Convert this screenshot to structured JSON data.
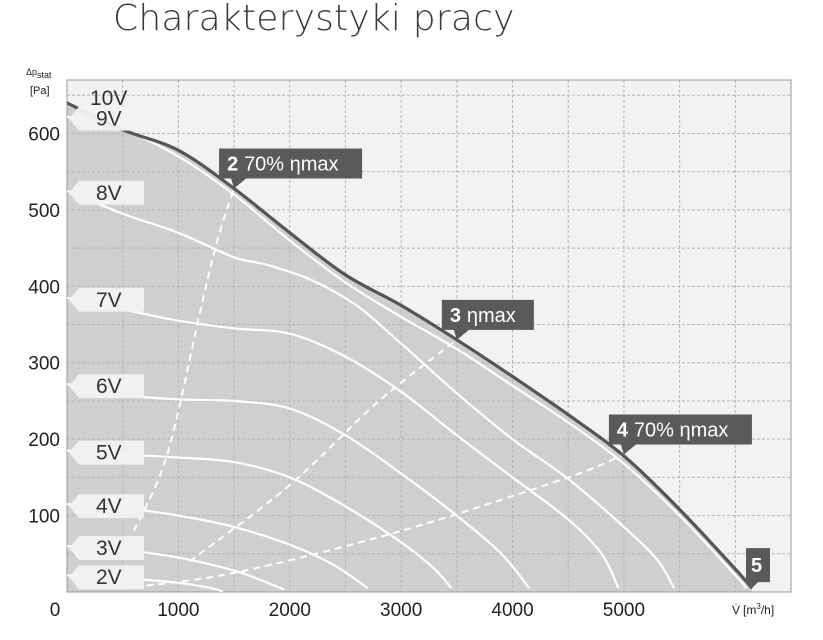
{
  "title": "Charakterystyki pracy",
  "chart_data": {
    "type": "line",
    "title": "Charakterystyki pracy",
    "ylabel": "Δp stat [Pa]",
    "ylabel_parts": {
      "symbol": "Δp",
      "sub": "stat",
      "unit": "[Pa]"
    },
    "xlabel": "V̇ [m³/h]",
    "xlabel_parts": {
      "symbol": "V̇",
      "unit_pre": "[m",
      "unit_sup": "3",
      "unit_post": "/h]"
    },
    "xlim": [
      0,
      6500
    ],
    "ylim": [
      0,
      670
    ],
    "x_ticks": [
      "0",
      "1000",
      "2000",
      "3000",
      "4000",
      "5000"
    ],
    "y_ticks": [
      "100",
      "200",
      "300",
      "400",
      "500",
      "600"
    ],
    "grid": true,
    "envelope": {
      "name": "10V",
      "points": [
        [
          0,
          640
        ],
        [
          500,
          605
        ],
        [
          1000,
          578
        ],
        [
          1500,
          528
        ],
        [
          2000,
          470
        ],
        [
          2500,
          415
        ],
        [
          3000,
          375
        ],
        [
          3500,
          330
        ],
        [
          4000,
          282
        ],
        [
          4500,
          232
        ],
        [
          5000,
          178
        ],
        [
          5500,
          108
        ],
        [
          6000,
          30
        ],
        [
          6150,
          5
        ]
      ]
    },
    "series": [
      {
        "name": "9V",
        "label": "9V",
        "values": [
          [
            0,
            622
          ],
          [
            500,
            605
          ],
          [
            1000,
            570
          ],
          [
            1500,
            520
          ],
          [
            2000,
            460
          ],
          [
            2500,
            405
          ],
          [
            3000,
            360
          ],
          [
            3500,
            318
          ],
          [
            4000,
            270
          ],
          [
            4500,
            222
          ],
          [
            5000,
            168
          ],
          [
            5500,
            100
          ],
          [
            6000,
            22
          ],
          [
            6100,
            5
          ]
        ]
      },
      {
        "name": "8V",
        "label": "8V",
        "values": [
          [
            0,
            525
          ],
          [
            500,
            495
          ],
          [
            1000,
            470
          ],
          [
            1500,
            438
          ],
          [
            1800,
            428
          ],
          [
            2200,
            408
          ],
          [
            2600,
            375
          ],
          [
            3000,
            325
          ],
          [
            3500,
            260
          ],
          [
            4000,
            200
          ],
          [
            4500,
            148
          ],
          [
            5000,
            85
          ],
          [
            5300,
            42
          ],
          [
            5450,
            5
          ]
        ]
      },
      {
        "name": "7V",
        "label": "7V",
        "values": [
          [
            0,
            385
          ],
          [
            500,
            370
          ],
          [
            1000,
            355
          ],
          [
            1500,
            345
          ],
          [
            2000,
            338
          ],
          [
            2500,
            308
          ],
          [
            3000,
            262
          ],
          [
            3500,
            205
          ],
          [
            4000,
            150
          ],
          [
            4500,
            95
          ],
          [
            4800,
            50
          ],
          [
            4950,
            5
          ]
        ]
      },
      {
        "name": "6V",
        "label": "6V",
        "values": [
          [
            0,
            272
          ],
          [
            500,
            258
          ],
          [
            1000,
            252
          ],
          [
            1500,
            250
          ],
          [
            2000,
            240
          ],
          [
            2500,
            205
          ],
          [
            3000,
            155
          ],
          [
            3500,
            100
          ],
          [
            3900,
            50
          ],
          [
            4150,
            5
          ]
        ]
      },
      {
        "name": "5V",
        "label": "5V",
        "values": [
          [
            0,
            185
          ],
          [
            500,
            180
          ],
          [
            1000,
            176
          ],
          [
            1500,
            170
          ],
          [
            2000,
            150
          ],
          [
            2500,
            112
          ],
          [
            3000,
            65
          ],
          [
            3300,
            30
          ],
          [
            3450,
            5
          ]
        ]
      },
      {
        "name": "4V",
        "label": "4V",
        "values": [
          [
            0,
            115
          ],
          [
            500,
            110
          ],
          [
            1000,
            100
          ],
          [
            1500,
            85
          ],
          [
            2000,
            62
          ],
          [
            2400,
            35
          ],
          [
            2700,
            5
          ]
        ]
      },
      {
        "name": "3V",
        "label": "3V",
        "values": [
          [
            0,
            60
          ],
          [
            500,
            55
          ],
          [
            1000,
            45
          ],
          [
            1500,
            28
          ],
          [
            1800,
            12
          ],
          [
            1950,
            3
          ]
        ]
      },
      {
        "name": "2V",
        "label": "2V",
        "values": [
          [
            0,
            22
          ],
          [
            500,
            18
          ],
          [
            1000,
            12
          ],
          [
            1300,
            5
          ],
          [
            1400,
            0
          ]
        ]
      }
    ],
    "efficiency_lines": [
      {
        "name": "2",
        "points": [
          [
            600,
            80
          ],
          [
            900,
            180
          ],
          [
            1200,
            370
          ],
          [
            1350,
            460
          ],
          [
            1500,
            528
          ]
        ]
      },
      {
        "name": "3",
        "points": [
          [
            1100,
            40
          ],
          [
            2000,
            140
          ],
          [
            2800,
            250
          ],
          [
            3500,
            330
          ]
        ]
      },
      {
        "name": "4",
        "points": [
          [
            500,
            5
          ],
          [
            1500,
            25
          ],
          [
            3000,
            80
          ],
          [
            4500,
            150
          ],
          [
            5000,
            180
          ]
        ]
      }
    ],
    "annotations": [
      {
        "num": "2",
        "text": "70% ηmax",
        "x": 1500,
        "y": 528
      },
      {
        "num": "3",
        "text": "ηmax",
        "x": 3500,
        "y": 330
      },
      {
        "num": "4",
        "text": "70% ηmax",
        "x": 5000,
        "y": 180
      },
      {
        "num": "5",
        "text": "",
        "x": 6150,
        "y": 5
      }
    ],
    "colors": {
      "background": "#f2f2f2",
      "fill": "#cfcfcf",
      "envelope": "#555555",
      "curves": "#ffffff",
      "grid": "#b4b4b4",
      "annotation": "#5a5a5a",
      "voltage_tag": "#f2f2f2"
    }
  }
}
